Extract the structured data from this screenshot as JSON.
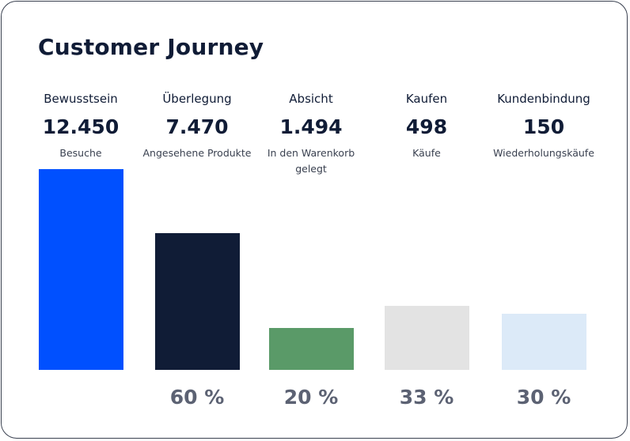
{
  "chart_data": {
    "type": "bar",
    "title": "Customer Journey",
    "categories": [
      "Bewusstsein",
      "Überlegung",
      "Absicht",
      "Kaufen",
      "Kundenbindung"
    ],
    "values": [
      12450,
      7470,
      1494,
      498,
      150
    ],
    "value_labels": [
      "12.450",
      "7.470",
      "1.494",
      "498",
      "150"
    ],
    "units": [
      "Besuche",
      "Angesehene Produkte",
      "In den Warenkorb gelegt",
      "Käufe",
      "Wiederholungskäufe"
    ],
    "conversion_labels": [
      "",
      "60 %",
      "20 %",
      "33 %",
      "30 %"
    ],
    "bar_colors": [
      "#0050ff",
      "#101c36",
      "#5a9a68",
      "#e3e3e3",
      "#dceaf8"
    ],
    "bar_display_fraction": [
      1.0,
      0.68,
      0.21,
      0.32,
      0.28
    ]
  }
}
